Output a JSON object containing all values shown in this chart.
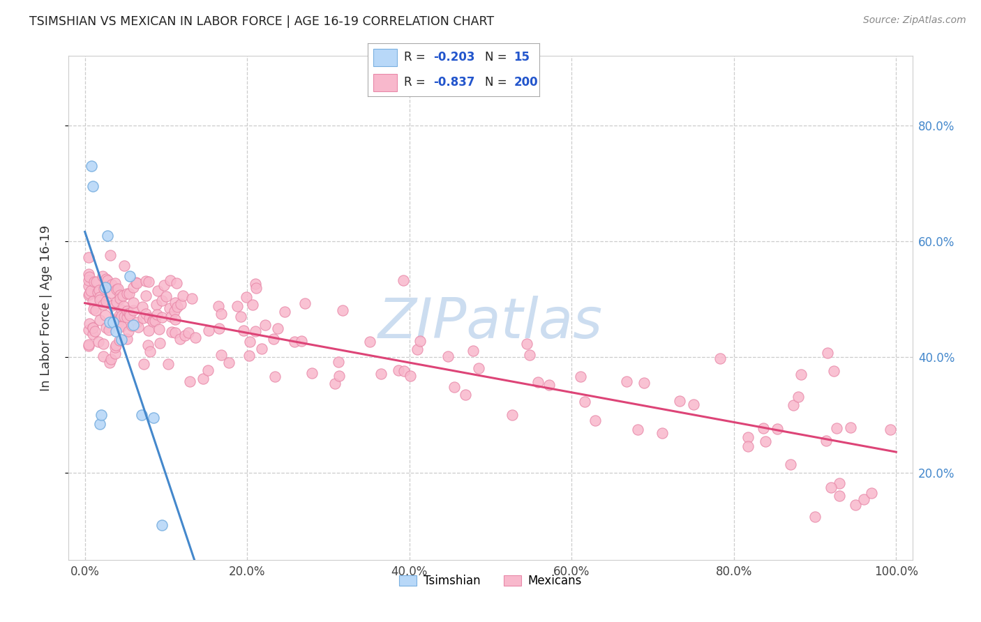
{
  "title": "TSIMSHIAN VS MEXICAN IN LABOR FORCE | AGE 16-19 CORRELATION CHART",
  "source": "Source: ZipAtlas.com",
  "ylabel": "In Labor Force | Age 16-19",
  "xlim": [
    -0.02,
    1.02
  ],
  "ylim": [
    0.05,
    0.92
  ],
  "x_ticks": [
    0.0,
    0.2,
    0.4,
    0.6,
    0.8,
    1.0
  ],
  "x_tick_labels": [
    "0.0%",
    "20.0%",
    "40.0%",
    "60.0%",
    "80.0%",
    "100.0%"
  ],
  "y_ticks": [
    0.2,
    0.4,
    0.6,
    0.8
  ],
  "y_tick_labels": [
    "20.0%",
    "40.0%",
    "60.0%",
    "80.0%"
  ],
  "background_color": "#ffffff",
  "grid_color": "#cccccc",
  "tsimshian_fill": "#b8d8f8",
  "tsimshian_edge": "#7ab0e0",
  "mexican_fill": "#f8b8cc",
  "mexican_edge": "#e888a8",
  "tsimshian_line_color": "#4488cc",
  "mexican_line_color": "#dd4477",
  "watermark_color": "#ccddf0",
  "legend_text_color": "#222222",
  "legend_value_color": "#2255cc",
  "right_tick_color": "#4488cc",
  "title_color": "#222222",
  "source_color": "#888888"
}
